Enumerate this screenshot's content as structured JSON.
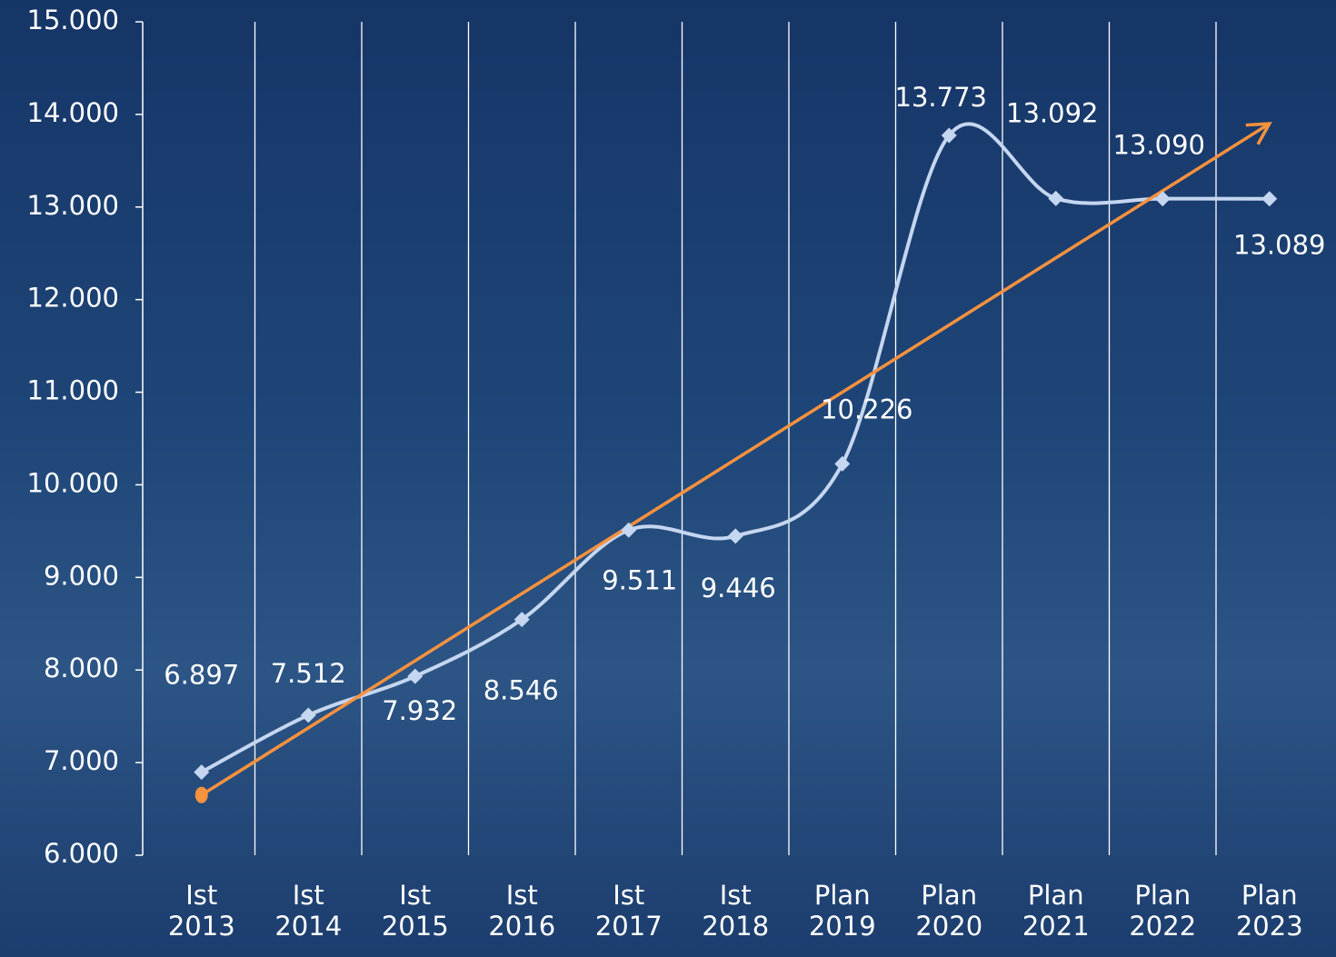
{
  "chart_data": {
    "type": "line",
    "categories": [
      "Ist 2013",
      "Ist 2014",
      "Ist 2015",
      "Ist 2016",
      "Ist 2017",
      "Ist 2018",
      "Plan 2019",
      "Plan 2020",
      "Plan 2021",
      "Plan 2022",
      "Plan 2023"
    ],
    "series": [
      {
        "color": "#c5d6f0",
        "values": [
          6897,
          7512,
          7932,
          8546,
          9511,
          9446,
          10226,
          13773,
          13092,
          13090,
          13089
        ],
        "value_labels": [
          "6.897",
          "7.512",
          "7.932",
          "8.546",
          "9.511",
          "9.446",
          "10.226",
          "13.773",
          "13.092",
          "13.090",
          "13.089"
        ]
      }
    ],
    "trend": {
      "color": "#f7923f",
      "values": [
        6650,
        13900
      ]
    },
    "ylim": [
      6000,
      15000
    ],
    "yticks": [
      {
        "value": 6000,
        "label": "6.000"
      },
      {
        "value": 7000,
        "label": "7.000"
      },
      {
        "value": 8000,
        "label": "8.000"
      },
      {
        "value": 9000,
        "label": "9.000"
      },
      {
        "value": 10000,
        "label": "10.000"
      },
      {
        "value": 11000,
        "label": "11.000"
      },
      {
        "value": 12000,
        "label": "12.000"
      },
      {
        "value": 13000,
        "label": "13.000"
      },
      {
        "value": 14000,
        "label": "14.000"
      },
      {
        "value": 15000,
        "label": "15.000"
      }
    ],
    "grid": true
  }
}
